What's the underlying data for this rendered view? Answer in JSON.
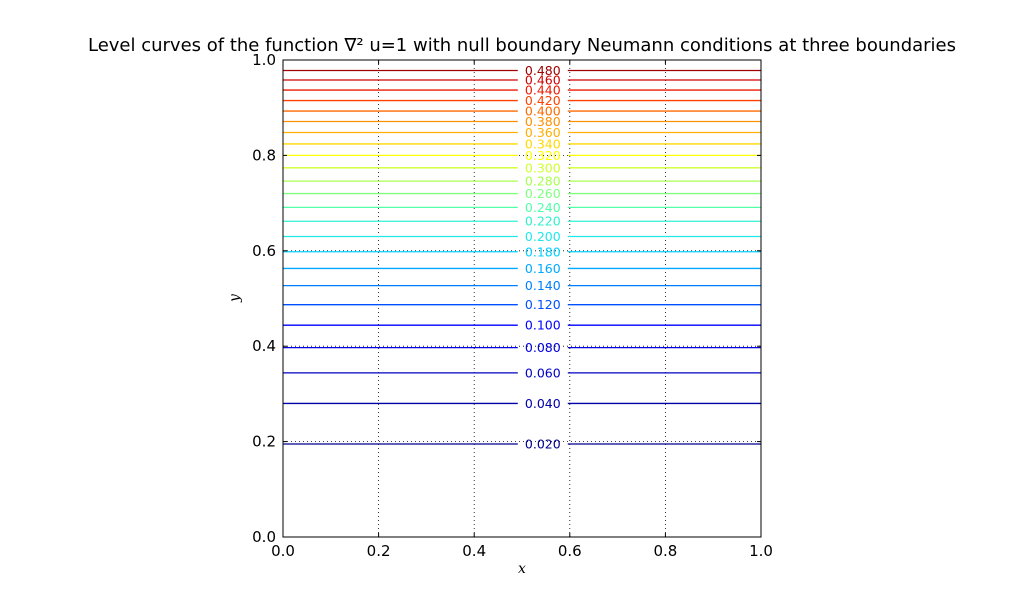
{
  "chart_data": {
    "type": "contour",
    "title": "Level curves of the function ∇² u=1 with null boundary Neumann conditions at three boundaries",
    "xlabel": "x",
    "ylabel": "y",
    "xlim": [
      0,
      1
    ],
    "ylim": [
      0,
      1
    ],
    "grid": true,
    "xticks": [
      "0.0",
      "0.2",
      "0.4",
      "0.6",
      "0.8",
      "1.0"
    ],
    "yticks": [
      "0.0",
      "0.2",
      "0.4",
      "0.6",
      "0.8",
      "1.0"
    ],
    "label_x": 0.6,
    "colormap": "jet",
    "levels": [
      {
        "value": 0.02,
        "label": "0.020",
        "y": 0.195,
        "color": "#00008f"
      },
      {
        "value": 0.04,
        "label": "0.040",
        "y": 0.28,
        "color": "#0000a8"
      },
      {
        "value": 0.06,
        "label": "0.060",
        "y": 0.344,
        "color": "#0000c4"
      },
      {
        "value": 0.08,
        "label": "0.080",
        "y": 0.397,
        "color": "#0000e0"
      },
      {
        "value": 0.1,
        "label": "0.100",
        "y": 0.444,
        "color": "#0000ff"
      },
      {
        "value": 0.12,
        "label": "0.120",
        "y": 0.487,
        "color": "#0050ff"
      },
      {
        "value": 0.14,
        "label": "0.140",
        "y": 0.527,
        "color": "#0080ff"
      },
      {
        "value": 0.16,
        "label": "0.160",
        "y": 0.563,
        "color": "#00a8ff"
      },
      {
        "value": 0.18,
        "label": "0.180",
        "y": 0.598,
        "color": "#00d0ff"
      },
      {
        "value": 0.2,
        "label": "0.200",
        "y": 0.63,
        "color": "#20e8e8"
      },
      {
        "value": 0.22,
        "label": "0.220",
        "y": 0.662,
        "color": "#30f0d0"
      },
      {
        "value": 0.24,
        "label": "0.240",
        "y": 0.691,
        "color": "#50ffa8"
      },
      {
        "value": 0.26,
        "label": "0.260",
        "y": 0.72,
        "color": "#80ff80"
      },
      {
        "value": 0.28,
        "label": "0.280",
        "y": 0.746,
        "color": "#a8ff50"
      },
      {
        "value": 0.3,
        "label": "0.300",
        "y": 0.774,
        "color": "#d0ff30"
      },
      {
        "value": 0.32,
        "label": "0.320",
        "y": 0.8,
        "color": "#ffff00"
      },
      {
        "value": 0.34,
        "label": "0.340",
        "y": 0.824,
        "color": "#ffd800"
      },
      {
        "value": 0.36,
        "label": "0.360",
        "y": 0.848,
        "color": "#ffb000"
      },
      {
        "value": 0.38,
        "label": "0.380",
        "y": 0.871,
        "color": "#ff9000"
      },
      {
        "value": 0.4,
        "label": "0.400",
        "y": 0.893,
        "color": "#ff6800"
      },
      {
        "value": 0.42,
        "label": "0.420",
        "y": 0.915,
        "color": "#ff4000"
      },
      {
        "value": 0.44,
        "label": "0.440",
        "y": 0.937,
        "color": "#f01800"
      },
      {
        "value": 0.46,
        "label": "0.460",
        "y": 0.958,
        "color": "#d00000"
      },
      {
        "value": 0.48,
        "label": "0.480",
        "y": 0.978,
        "color": "#a00000"
      }
    ]
  }
}
